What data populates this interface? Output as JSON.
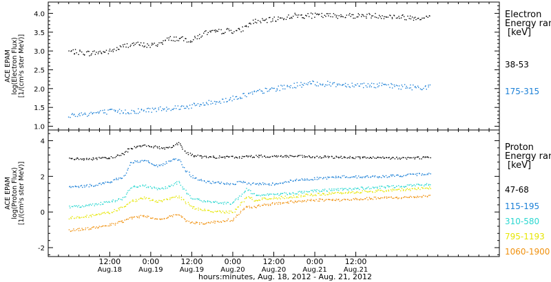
{
  "chart_data": [
    {
      "type": "scatter",
      "panel": "electron",
      "ylabel": [
        "ACE EPAM",
        "log(Electron Flux)",
        "[1/(cm²s ster MeV)]"
      ],
      "ylim": [
        0.9,
        4.3
      ],
      "yticks": [
        "1.0",
        "1.5",
        "2.0",
        "2.5",
        "3.0",
        "3.5",
        "4.0"
      ],
      "ytick_values": [
        1.0,
        1.5,
        2.0,
        2.5,
        3.0,
        3.5,
        4.0
      ],
      "legend_title": [
        "Electron",
        "Energy ran",
        "[keV]"
      ],
      "series": [
        {
          "name": "38-53",
          "color": "#000000",
          "x": [
            0,
            6,
            12,
            18,
            24,
            26,
            30,
            36,
            40,
            42,
            46,
            50,
            54,
            56,
            60,
            66,
            68,
            72,
            80,
            90,
            100,
            106
          ],
          "y": [
            3.0,
            2.95,
            3.0,
            3.2,
            3.15,
            3.2,
            3.35,
            3.3,
            3.5,
            3.5,
            3.55,
            3.55,
            3.8,
            3.8,
            3.85,
            3.95,
            3.95,
            3.95,
            3.95,
            3.95,
            3.9,
            3.9
          ]
        },
        {
          "name": "175-315",
          "color": "#1a7fd6",
          "x": [
            0,
            6,
            12,
            18,
            24,
            30,
            36,
            42,
            48,
            54,
            60,
            66,
            72,
            80,
            90,
            100,
            106
          ],
          "y": [
            1.3,
            1.35,
            1.4,
            1.4,
            1.45,
            1.5,
            1.55,
            1.65,
            1.75,
            1.9,
            2.0,
            2.1,
            2.15,
            2.12,
            2.1,
            2.05,
            2.05
          ]
        }
      ]
    },
    {
      "type": "scatter",
      "panel": "proton",
      "ylabel": [
        "ACE EPAM",
        "log(Proton Flux)",
        "[1/(cm²s ster MeV)]"
      ],
      "ylim": [
        -2.5,
        4.6
      ],
      "yticks": [
        "-2",
        "0",
        "2",
        "4"
      ],
      "ytick_values": [
        -2,
        0,
        2,
        4
      ],
      "legend_title": [
        "Proton",
        "Energy ran",
        "[keV]"
      ],
      "series": [
        {
          "name": "47-68",
          "color": "#000000",
          "x": [
            0,
            6,
            12,
            16,
            18,
            22,
            24,
            28,
            30,
            32,
            34,
            36,
            40,
            48,
            50,
            54,
            60,
            66,
            72,
            80,
            90,
            100,
            106
          ],
          "y": [
            3.0,
            3.0,
            3.05,
            3.3,
            3.6,
            3.8,
            3.7,
            3.6,
            3.7,
            3.9,
            3.4,
            3.2,
            3.1,
            3.1,
            3.1,
            3.15,
            3.15,
            3.15,
            3.1,
            3.1,
            3.05,
            3.05,
            3.1
          ]
        },
        {
          "name": "115-195",
          "color": "#1a7fd6",
          "x": [
            0,
            6,
            12,
            16,
            18,
            22,
            26,
            30,
            32,
            34,
            36,
            40,
            48,
            50,
            54,
            60,
            66,
            72,
            80,
            90,
            100,
            106
          ],
          "y": [
            1.4,
            1.5,
            1.7,
            2.0,
            2.8,
            2.9,
            2.6,
            2.9,
            3.0,
            2.4,
            2.0,
            1.7,
            1.6,
            1.7,
            1.6,
            1.6,
            1.8,
            1.9,
            2.0,
            2.0,
            2.1,
            2.2
          ]
        },
        {
          "name": "310-580",
          "color": "#2ad7d0",
          "x": [
            0,
            6,
            12,
            16,
            18,
            22,
            26,
            30,
            32,
            34,
            36,
            40,
            48,
            50,
            52,
            54,
            60,
            66,
            72,
            80,
            90,
            100,
            106
          ],
          "y": [
            0.3,
            0.4,
            0.6,
            0.8,
            1.4,
            1.5,
            1.3,
            1.5,
            1.7,
            1.2,
            0.8,
            0.6,
            0.5,
            0.9,
            1.3,
            1.0,
            1.0,
            1.1,
            1.2,
            1.3,
            1.4,
            1.5,
            1.6
          ]
        },
        {
          "name": "795-1193",
          "color": "#e6e600",
          "x": [
            0,
            6,
            12,
            16,
            18,
            22,
            26,
            30,
            32,
            34,
            36,
            40,
            48,
            50,
            52,
            54,
            60,
            66,
            72,
            80,
            90,
            100,
            106
          ],
          "y": [
            -0.3,
            -0.2,
            0.0,
            0.3,
            0.6,
            0.8,
            0.6,
            0.8,
            0.9,
            0.6,
            0.3,
            0.1,
            0.0,
            0.4,
            0.9,
            0.7,
            0.8,
            0.9,
            1.0,
            1.1,
            1.2,
            1.3,
            1.4
          ]
        },
        {
          "name": "1060-1900",
          "color": "#f0900c",
          "x": [
            0,
            6,
            12,
            16,
            18,
            22,
            26,
            30,
            32,
            34,
            36,
            40,
            48,
            50,
            52,
            54,
            60,
            66,
            72,
            80,
            90,
            100,
            106
          ],
          "y": [
            -1.0,
            -0.9,
            -0.7,
            -0.5,
            -0.3,
            -0.2,
            -0.4,
            -0.2,
            -0.1,
            -0.4,
            -0.6,
            -0.6,
            -0.4,
            0.0,
            0.3,
            0.3,
            0.5,
            0.6,
            0.7,
            0.7,
            0.8,
            0.85,
            0.95
          ]
        }
      ]
    }
  ],
  "x_axis": {
    "xlim": [
      -6,
      126
    ],
    "ticks": [
      {
        "x": 12,
        "time": "12:00",
        "date": "Aug.18"
      },
      {
        "x": 24,
        "time": "0:00",
        "date": "Aug.19"
      },
      {
        "x": 36,
        "time": "12:00",
        "date": "Aug.19"
      },
      {
        "x": 48,
        "time": "0:00",
        "date": "Aug.20"
      },
      {
        "x": 60,
        "time": "12:00",
        "date": "Aug.20"
      },
      {
        "x": 72,
        "time": "0:00",
        "date": "Aug.21"
      },
      {
        "x": 84,
        "time": "12:00",
        "date": "Aug.21"
      }
    ],
    "label": "hours:minutes, Aug. 18, 2012 - Aug. 21, 2012"
  }
}
